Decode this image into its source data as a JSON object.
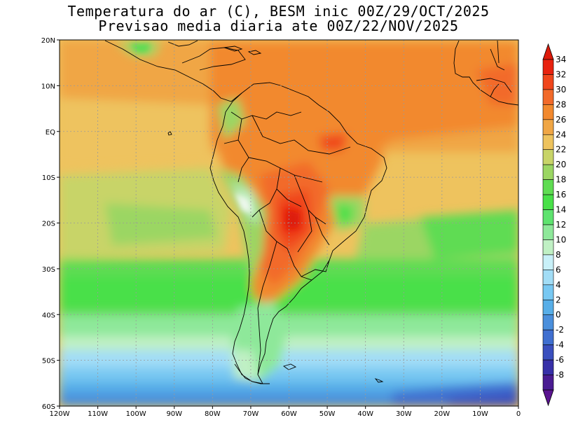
{
  "title": {
    "line1": "Temperatura do ar (C), BESM inic 00Z/29/OCT/2025",
    "line2": "Previsao media diaria ate 00Z/22/NOV/2025"
  },
  "map": {
    "lon_labels": [
      "120W",
      "110W",
      "100W",
      "90W",
      "80W",
      "70W",
      "60W",
      "50W",
      "40W",
      "30W",
      "20W",
      "10W",
      "0"
    ],
    "lat_labels": [
      "20N",
      "10N",
      "EQ",
      "10S",
      "20S",
      "30S",
      "40S",
      "50S",
      "60S"
    ],
    "lon_range": [
      -120,
      0
    ],
    "lat_range": [
      -60,
      20
    ]
  },
  "colorbar": {
    "labels": [
      "34",
      "32",
      "30",
      "28",
      "26",
      "24",
      "22",
      "20",
      "18",
      "16",
      "14",
      "12",
      "10",
      "8",
      "6",
      "4",
      "2",
      "0",
      "-2",
      "-4",
      "-6",
      "-8"
    ],
    "colors": [
      "#e8220f",
      "#f0461c",
      "#f26a2a",
      "#f2892e",
      "#f0a645",
      "#eec35e",
      "#c8d468",
      "#9bd663",
      "#5fdc52",
      "#48e048",
      "#5ee36f",
      "#8ee89a",
      "#c0f0c4",
      "#c8f0f8",
      "#a2ddf6",
      "#78c8f2",
      "#57aee8",
      "#4a8fdc",
      "#3f6fd0",
      "#3a4fbe",
      "#3730a8",
      "#4a1c92"
    ],
    "top_color": "#dd1a0a",
    "bottom_color": "#5a1490"
  }
}
